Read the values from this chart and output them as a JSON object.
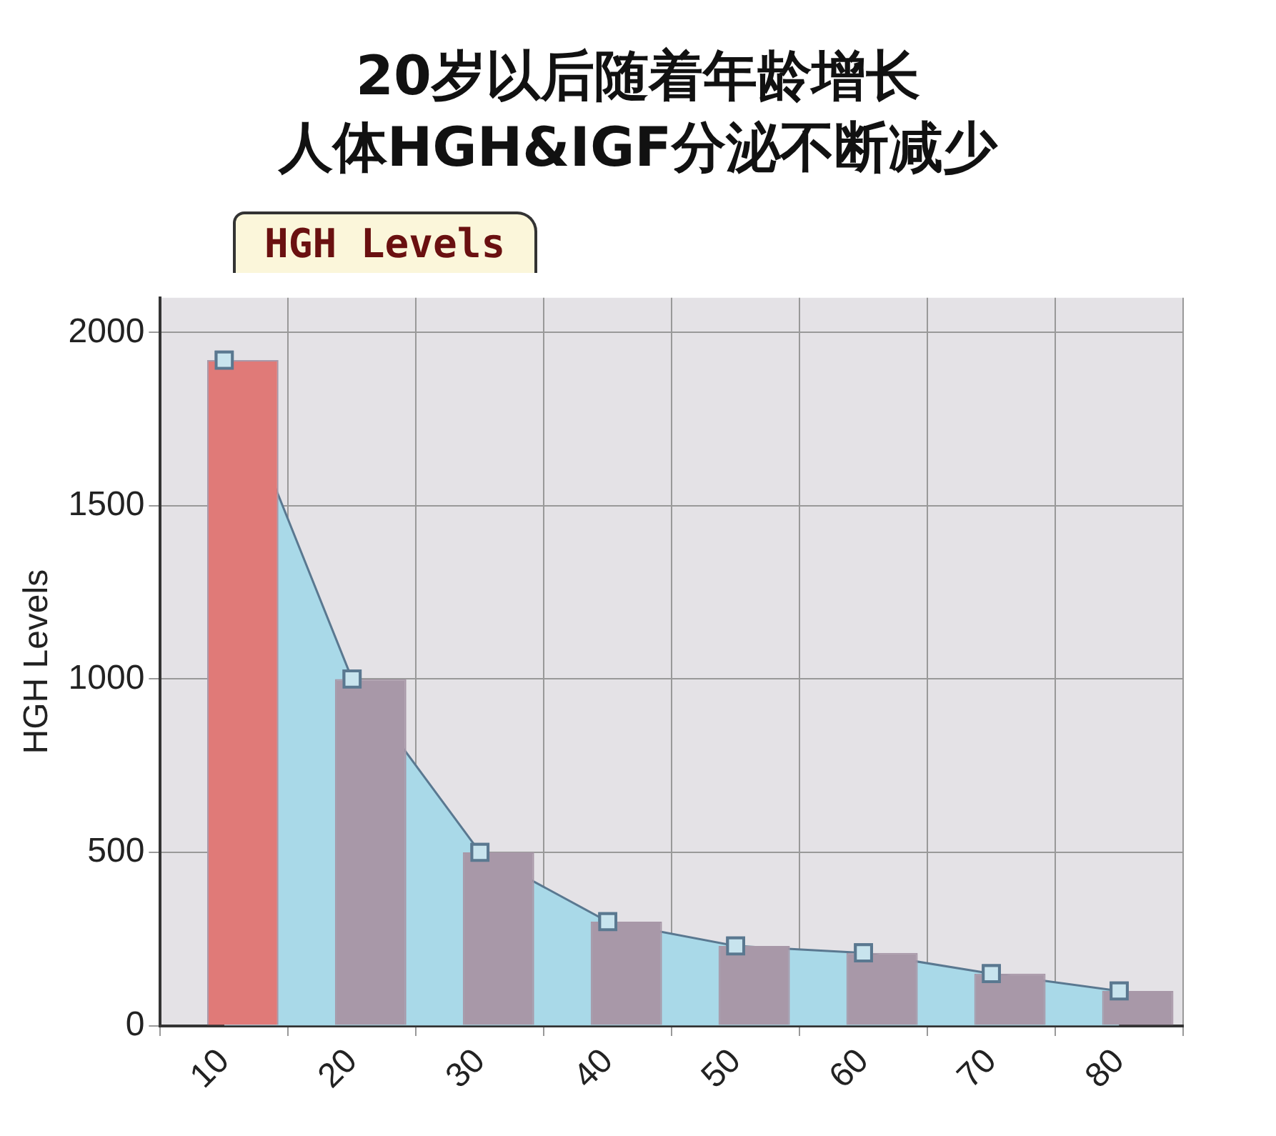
{
  "chart_data": {
    "type": "bar",
    "title": "20岁以后随着年龄增长",
    "subtitle": "人体HGH&IGF分泌不断减少",
    "annotations": [
      "HGH Levels"
    ],
    "ylabel": "HGH Levels",
    "categories": [
      "10",
      "20",
      "30",
      "40",
      "50",
      "60",
      "70",
      "80"
    ],
    "series": [
      {
        "type": "area",
        "color": "#a9d9e8",
        "values": [
          1920,
          1000,
          500,
          300,
          230,
          210,
          150,
          100
        ],
        "marker": "square"
      },
      {
        "color": "#a898a8",
        "colors": [
          "#e07a78",
          "#a898a8",
          "#a898a8",
          "#a898a8",
          "#a898a8",
          "#a898a8",
          "#a898a8",
          "#a898a8"
        ],
        "values": [
          1920,
          1000,
          500,
          300,
          230,
          210,
          150,
          100
        ]
      }
    ],
    "ylim": [
      0,
      2100
    ],
    "yticks": [
      0,
      500,
      1000,
      1500,
      2000
    ],
    "grid": true,
    "legend": false
  }
}
